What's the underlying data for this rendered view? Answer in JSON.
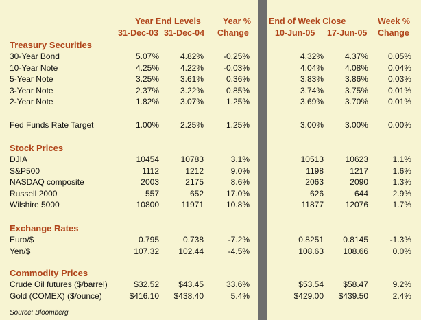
{
  "headers": {
    "year_end_levels": "Year End Levels",
    "date_31dec03": "31-Dec-03",
    "date_31dec04": "31-Dec-04",
    "year_pct": "Year %",
    "year_change": "Change",
    "end_of_week_close": "End of Week Close",
    "date_10jun05": "10-Jun-05",
    "date_17jun05": "17-Jun-05",
    "week_pct": "Week %",
    "week_change": "Change"
  },
  "sections": {
    "treasury": "Treasury Securities",
    "stocks": "Stock Prices",
    "exchange": "Exchange Rates",
    "commodity": "Commodity Prices"
  },
  "treasury_rows": [
    {
      "label": "30-Year Bond",
      "v1": "5.07%",
      "v2": "4.82%",
      "v3": "-0.25%",
      "v4": "4.32%",
      "v5": "4.37%",
      "v6": "0.05%"
    },
    {
      "label": "10-Year Note",
      "v1": "4.25%",
      "v2": "4.22%",
      "v3": "-0.03%",
      "v4": "4.04%",
      "v5": "4.08%",
      "v6": "0.04%"
    },
    {
      "label": "5-Year Note",
      "v1": "3.25%",
      "v2": "3.61%",
      "v3": "0.36%",
      "v4": "3.83%",
      "v5": "3.86%",
      "v6": "0.03%"
    },
    {
      "label": "3-Year Note",
      "v1": "2.37%",
      "v2": "3.22%",
      "v3": "0.85%",
      "v4": "3.74%",
      "v5": "3.75%",
      "v6": "0.01%"
    },
    {
      "label": "2-Year Note",
      "v1": "1.82%",
      "v2": "3.07%",
      "v3": "1.25%",
      "v4": "3.69%",
      "v5": "3.70%",
      "v6": "0.01%"
    }
  ],
  "fed_funds": {
    "label": "Fed Funds Rate Target",
    "v1": "1.00%",
    "v2": "2.25%",
    "v3": "1.25%",
    "v4": "3.00%",
    "v5": "3.00%",
    "v6": "0.00%"
  },
  "stock_rows": [
    {
      "label": "DJIA",
      "v1": "10454",
      "v2": "10783",
      "v3": "3.1%",
      "v4": "10513",
      "v5": "10623",
      "v6": "1.1%"
    },
    {
      "label": "S&P500",
      "v1": "1112",
      "v2": "1212",
      "v3": "9.0%",
      "v4": "1198",
      "v5": "1217",
      "v6": "1.6%"
    },
    {
      "label": "NASDAQ composite",
      "v1": "2003",
      "v2": "2175",
      "v3": "8.6%",
      "v4": "2063",
      "v5": "2090",
      "v6": "1.3%"
    },
    {
      "label": "Russell 2000",
      "v1": "557",
      "v2": "652",
      "v3": "17.0%",
      "v4": "626",
      "v5": "644",
      "v6": "2.9%"
    },
    {
      "label": "Wilshire 5000",
      "v1": "10800",
      "v2": "11971",
      "v3": "10.8%",
      "v4": "11877",
      "v5": "12076",
      "v6": "1.7%"
    }
  ],
  "exchange_rows": [
    {
      "label": "Euro/$",
      "v1": "0.795",
      "v2": "0.738",
      "v3": "-7.2%",
      "v4": "0.8251",
      "v5": "0.8145",
      "v6": "-1.3%"
    },
    {
      "label": "Yen/$",
      "v1": "107.32",
      "v2": "102.44",
      "v3": "-4.5%",
      "v4": "108.63",
      "v5": "108.66",
      "v6": "0.0%"
    }
  ],
  "commodity_rows": [
    {
      "label": "Crude Oil futures ($/barrel)",
      "v1": "$32.52",
      "v2": "$43.45",
      "v3": "33.6%",
      "v4": "$53.54",
      "v5": "$58.47",
      "v6": "9.2%"
    },
    {
      "label": "Gold (COMEX) ($/ounce)",
      "v1": "$416.10",
      "v2": "$438.40",
      "v3": "5.4%",
      "v4": "$429.00",
      "v5": "$439.50",
      "v6": "2.4%"
    }
  ],
  "source": "Source: Bloomberg"
}
